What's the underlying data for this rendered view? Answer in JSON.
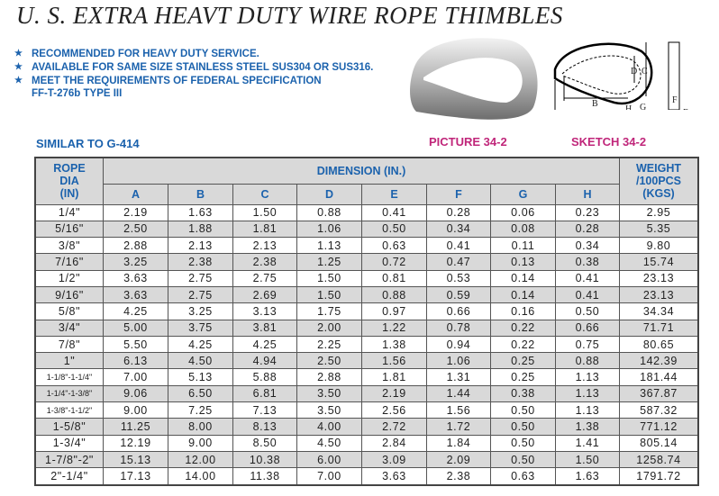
{
  "title": "U. S. EXTRA HEAVT DUTY WIRE ROPE THIMBLES",
  "bullets": [
    "RECOMMENDED FOR HEAVY DUTY SERVICE.",
    "AVAILABLE FOR SAME SIZE STAINLESS STEEL SUS304 OR SUS316.",
    "MEET THE REQUIREMENTS OF FEDERAL SPECIFICATION",
    "FF-T-276b TYPE III"
  ],
  "similar": "SIMILAR TO G-414",
  "picture_caption": "PICTURE 34-2",
  "sketch_caption": "SKETCH 34-2",
  "sketch_labels": [
    "A",
    "B",
    "C",
    "D",
    "E",
    "F",
    "G",
    "H"
  ],
  "colors": {
    "blue": "#1b62ad",
    "magenta": "#c0267a",
    "row_gray": "#d9d9d9"
  },
  "table": {
    "rope_header": [
      "ROPE",
      "DIA",
      "(IN)"
    ],
    "dimension_header": "DIMENSION (IN.)",
    "weight_header": [
      "WEIGHT",
      "/100PCS",
      "(KGS)"
    ],
    "columns": [
      "A",
      "B",
      "C",
      "D",
      "E",
      "F",
      "G",
      "H"
    ],
    "rows": [
      [
        "1/4\"",
        "2.19",
        "1.63",
        "1.50",
        "0.88",
        "0.41",
        "0.28",
        "0.06",
        "0.23",
        "2.95"
      ],
      [
        "5/16\"",
        "2.50",
        "1.88",
        "1.81",
        "1.06",
        "0.50",
        "0.34",
        "0.08",
        "0.28",
        "5.35"
      ],
      [
        "3/8\"",
        "2.88",
        "2.13",
        "2.13",
        "1.13",
        "0.63",
        "0.41",
        "0.11",
        "0.34",
        "9.80"
      ],
      [
        "7/16\"",
        "3.25",
        "2.38",
        "2.38",
        "1.25",
        "0.72",
        "0.47",
        "0.13",
        "0.38",
        "15.74"
      ],
      [
        "1/2\"",
        "3.63",
        "2.75",
        "2.75",
        "1.50",
        "0.81",
        "0.53",
        "0.14",
        "0.41",
        "23.13"
      ],
      [
        "9/16\"",
        "3.63",
        "2.75",
        "2.69",
        "1.50",
        "0.88",
        "0.59",
        "0.14",
        "0.41",
        "23.13"
      ],
      [
        "5/8\"",
        "4.25",
        "3.25",
        "3.13",
        "1.75",
        "0.97",
        "0.66",
        "0.16",
        "0.50",
        "34.34"
      ],
      [
        "3/4\"",
        "5.00",
        "3.75",
        "3.81",
        "2.00",
        "1.22",
        "0.78",
        "0.22",
        "0.66",
        "71.71"
      ],
      [
        "7/8\"",
        "5.50",
        "4.25",
        "4.25",
        "2.25",
        "1.38",
        "0.94",
        "0.22",
        "0.75",
        "80.65"
      ],
      [
        "1\"",
        "6.13",
        "4.50",
        "4.94",
        "2.50",
        "1.56",
        "1.06",
        "0.25",
        "0.88",
        "142.39"
      ],
      [
        "1-1/8\"-1-1/4\"",
        "7.00",
        "5.13",
        "5.88",
        "2.88",
        "1.81",
        "1.31",
        "0.25",
        "1.13",
        "181.44"
      ],
      [
        "1-1/4\"-1-3/8\"",
        "9.06",
        "6.50",
        "6.81",
        "3.50",
        "2.19",
        "1.44",
        "0.38",
        "1.13",
        "367.87"
      ],
      [
        "1-3/8\"-1-1/2\"",
        "9.00",
        "7.25",
        "7.13",
        "3.50",
        "2.56",
        "1.56",
        "0.50",
        "1.13",
        "587.32"
      ],
      [
        "1-5/8\"",
        "11.25",
        "8.00",
        "8.13",
        "4.00",
        "2.72",
        "1.72",
        "0.50",
        "1.38",
        "771.12"
      ],
      [
        "1-3/4\"",
        "12.19",
        "9.00",
        "8.50",
        "4.50",
        "2.84",
        "1.84",
        "0.50",
        "1.41",
        "805.14"
      ],
      [
        "1-7/8\"-2\"",
        "15.13",
        "12.00",
        "10.38",
        "6.00",
        "3.09",
        "2.09",
        "0.50",
        "1.50",
        "1258.74"
      ],
      [
        "2\"-1/4\"",
        "17.13",
        "14.00",
        "11.38",
        "7.00",
        "3.63",
        "2.38",
        "0.63",
        "1.63",
        "1791.72"
      ]
    ]
  }
}
